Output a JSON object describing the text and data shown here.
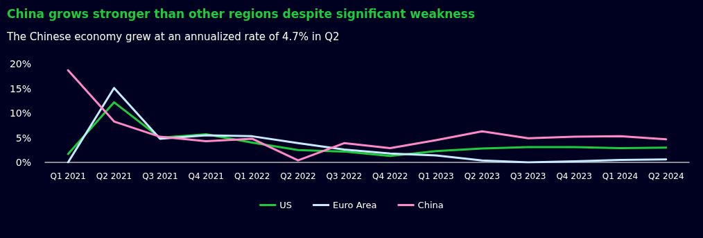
{
  "chart_data": {
    "type": "line",
    "title": "China grows stronger than other regions despite significant weakness",
    "subtitle": "The Chinese economy grew at an annualized rate of 4.7% in Q2",
    "categories": [
      "Q1 2021",
      "Q2 2021",
      "Q3 2021",
      "Q4 2021",
      "Q1 2022",
      "Q2 2022",
      "Q3 2022",
      "Q4 2022",
      "Q1 2023",
      "Q2 2023",
      "Q3 2023",
      "Q4 2023",
      "Q1 2024",
      "Q2 2024"
    ],
    "series": [
      {
        "name": "US",
        "color": "#1ecb3c",
        "values": [
          1.7,
          12.2,
          5.0,
          5.7,
          4.0,
          2.5,
          2.2,
          1.3,
          2.3,
          2.8,
          3.1,
          3.1,
          2.9,
          3.0
        ]
      },
      {
        "name": "Euro Area",
        "color": "#c6eaff",
        "values": [
          0,
          15.1,
          4.8,
          5.5,
          5.3,
          3.9,
          2.6,
          1.8,
          1.4,
          0.4,
          0.0,
          0.2,
          0.5,
          0.6
        ]
      },
      {
        "name": "China",
        "color": "#ff88c8",
        "values": [
          18.7,
          8.3,
          5.2,
          4.3,
          4.8,
          0.4,
          3.9,
          2.9,
          4.5,
          6.3,
          4.9,
          5.2,
          5.3,
          4.7
        ]
      }
    ],
    "ylim": [
      0,
      20
    ],
    "yticks": [
      {
        "value": 0,
        "label": "0%"
      },
      {
        "value": 5,
        "label": "5%"
      },
      {
        "value": 10,
        "label": "10%"
      },
      {
        "value": 15,
        "label": "15%"
      },
      {
        "value": 20,
        "label": "20%"
      }
    ],
    "grid": false,
    "legend": "bottom",
    "marker": "none",
    "line_style": "solid"
  }
}
